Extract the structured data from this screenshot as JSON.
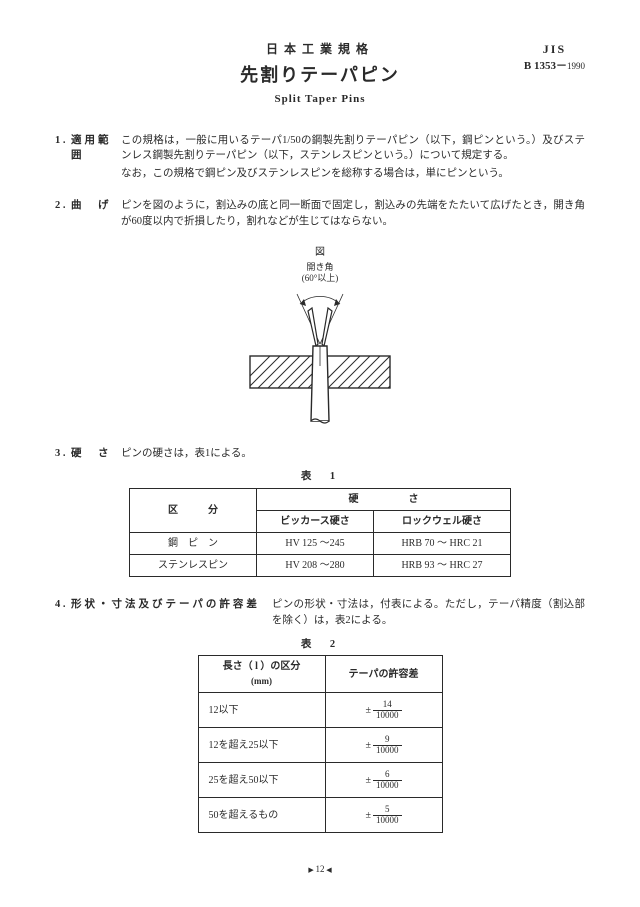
{
  "header": {
    "sup_jp": "日本工業規格",
    "title_jp": "先割りテーパピン",
    "title_en": "Split Taper Pins",
    "std_code": "JIS",
    "std_num": "B 1353",
    "std_year": "1990"
  },
  "sec1": {
    "num": "1 .",
    "title": "適用範囲",
    "body1": "この規格は，一般に用いるテーパ1/50の鋼製先割りテーパピン（以下，鋼ピンという。）及びステンレス鋼製先割りテーパピン（以下，ステンレスピンという。）について規定する。",
    "body2": "なお，この規格で鋼ピン及びステンレスピンを総称する場合は，単にピンという。"
  },
  "sec2": {
    "num": "2 .",
    "title": "曲　げ",
    "body": "ピンを図のように，割込みの底と同一断面で固定し，割込みの先端をたたいて広げたとき，開き角が60度以内で折損したり，割れなどが生じてはならない。"
  },
  "figure": {
    "label": "図",
    "open_angle_label": "開き角",
    "open_angle_value": "(60°以上)"
  },
  "sec3": {
    "num": "3 .",
    "title": "硬　さ",
    "body": "ピンの硬さは，表1による。"
  },
  "table1": {
    "caption": "表　1",
    "h_kubun": "区　　　分",
    "h_hardness": "硬　　　　　さ",
    "h_vickers": "ビッカース硬さ",
    "h_rockwell": "ロックウェル硬さ",
    "r1_name": "鋼　ピ　ン",
    "r1_v": "HV 125 ～245",
    "r1_r": "HRB 70 ～ HRC 21",
    "r2_name": "ステンレスピン",
    "r2_v": "HV 208 ～280",
    "r2_r": "HRB 93 ～ HRC 27"
  },
  "sec4": {
    "num": "4 .",
    "title": "形状・寸法及びテーパの許容差",
    "body": "ピンの形状・寸法は，付表による。ただし，テーパ精度（割込部を除く）は，表2による。"
  },
  "table2": {
    "caption": "表　2",
    "h_len": "長さ（ l ）の区分",
    "h_len_unit": "(mm)",
    "h_tol": "テーパの許容差",
    "rows": [
      {
        "len": "12以下",
        "num": "14",
        "den": "10000"
      },
      {
        "len": "12を超え25以下",
        "num": "9",
        "den": "10000"
      },
      {
        "len": "25を超え50以下",
        "num": "6",
        "den": "10000"
      },
      {
        "len": "50を超えるもの",
        "num": "5",
        "den": "10000"
      }
    ]
  },
  "page": "12"
}
